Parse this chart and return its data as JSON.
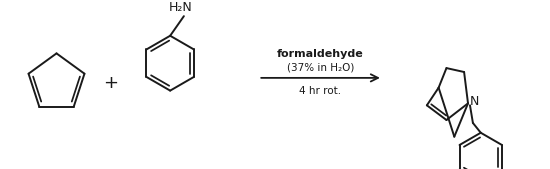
{
  "bg_color": "#ffffff",
  "line_color": "#1a1a1a",
  "line_width": 1.4,
  "arrow_text_line1": "formaldehyde",
  "arrow_text_line2": "(37% in H₂O)",
  "arrow_text_line3": "4 hr rot.",
  "plus_sign": "+",
  "N_label": "N",
  "H2N_label": "H₂N"
}
